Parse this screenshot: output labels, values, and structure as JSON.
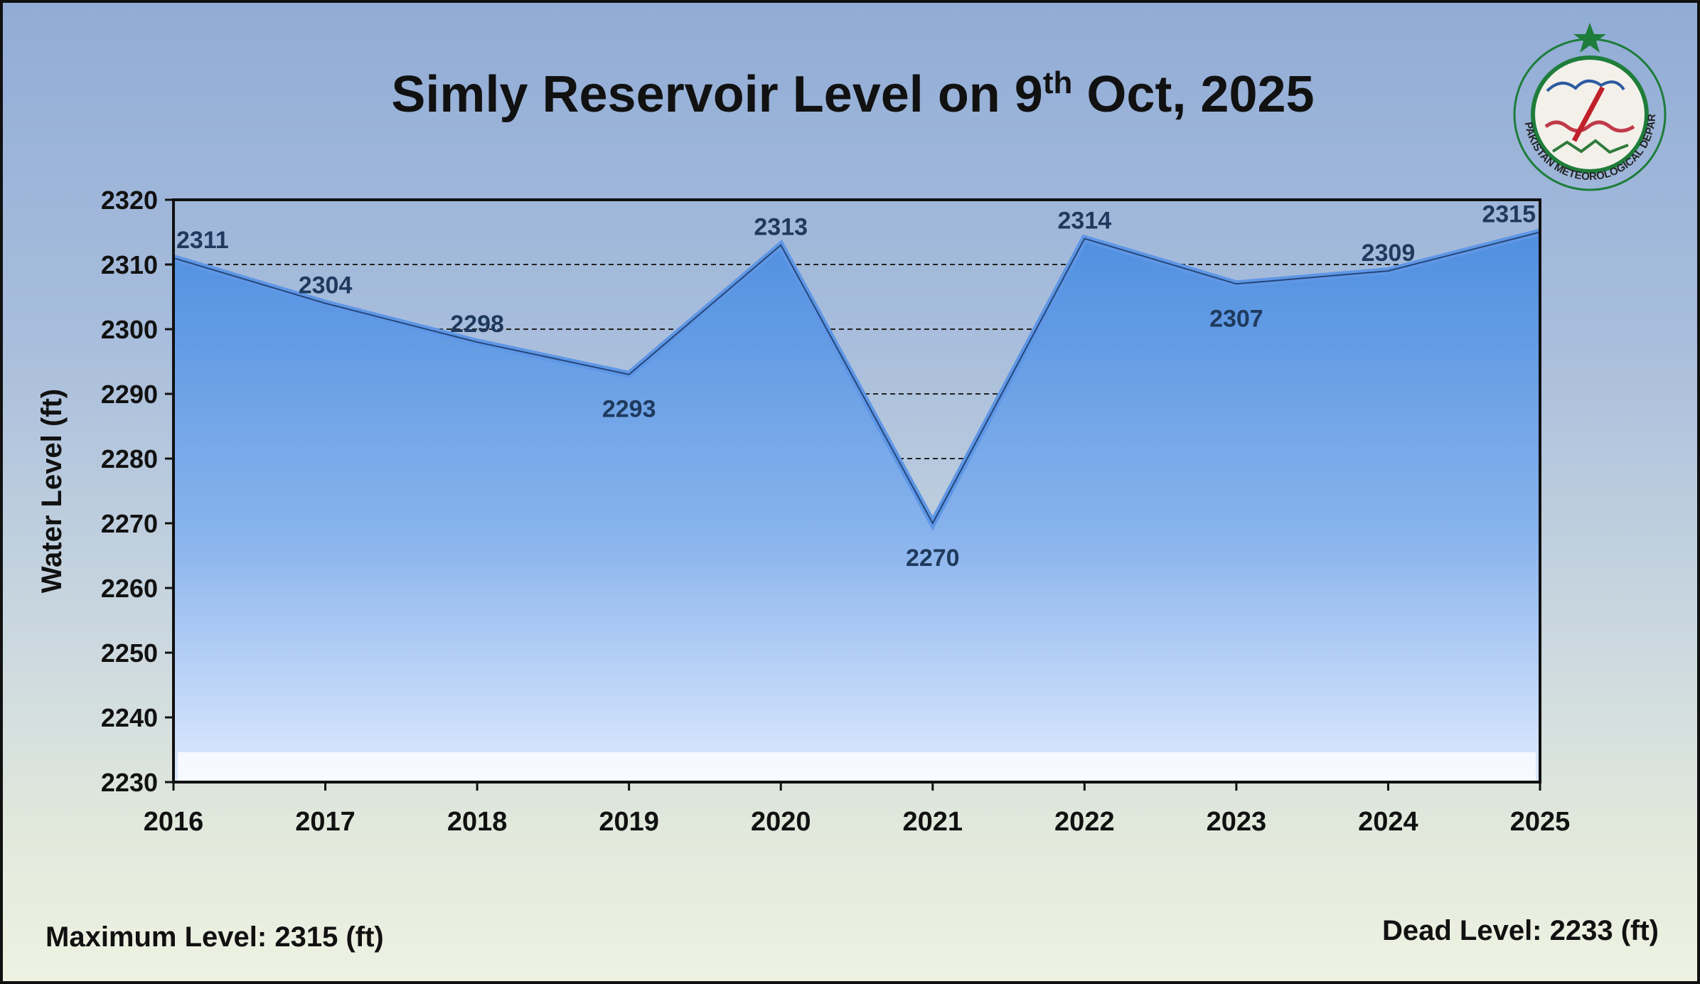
{
  "title": {
    "main": "Simly Reservoir Level on 9",
    "sup": "th",
    "tail": " Oct, 2025"
  },
  "chart_data": {
    "type": "area",
    "title": "Simly Reservoir Level on 9th Oct, 2025",
    "xlabel": "",
    "ylabel": "Water Level (ft)",
    "categories": [
      "2016",
      "2017",
      "2018",
      "2019",
      "2020",
      "2021",
      "2022",
      "2023",
      "2024",
      "2025"
    ],
    "values": [
      2311,
      2304,
      2298,
      2293,
      2313,
      2270,
      2314,
      2307,
      2309,
      2315
    ],
    "data_labels": [
      "2311",
      "2304",
      "2298",
      "2293",
      "2313",
      "2270",
      "2314",
      "2307",
      "2309",
      "2315"
    ],
    "ylim": [
      2230,
      2320
    ],
    "yticks": [
      "2230",
      "2240",
      "2250",
      "2260",
      "2270",
      "2280",
      "2290",
      "2300",
      "2310",
      "2320"
    ],
    "grid": true,
    "colors": {
      "fill_top": "#4f8fe0",
      "fill_bottom": "#dfeaff",
      "label": "#1f3a5e"
    }
  },
  "notes": {
    "max_level": "Maximum Level: 2315 (ft)",
    "dead_level": "Dead Level: 2233 (ft)"
  },
  "logo": {
    "text": "PAKISTAN METEOROLOGICAL DEPARTMENT",
    "colors": {
      "star": "#1e7d3a",
      "ring": "#1e7d3a",
      "inner": "#f3f0ea"
    }
  }
}
